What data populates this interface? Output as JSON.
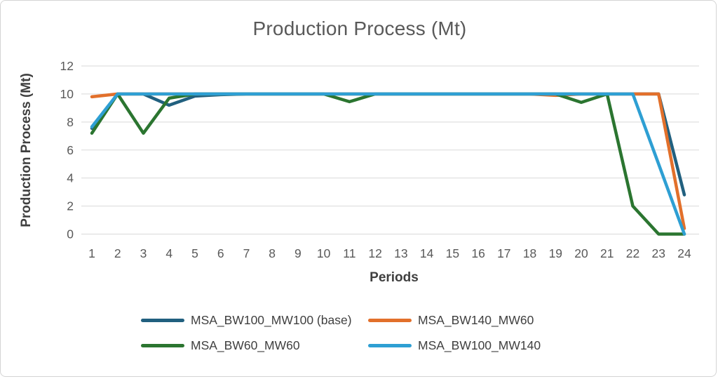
{
  "chart_data": {
    "type": "line",
    "title": "Production Process (Mt)",
    "xlabel": "Periods",
    "ylabel": "Production Process (Mt)",
    "x": [
      1,
      2,
      3,
      4,
      5,
      6,
      7,
      8,
      9,
      10,
      11,
      12,
      13,
      14,
      15,
      16,
      17,
      18,
      19,
      20,
      21,
      22,
      23,
      24
    ],
    "y_ticks": [
      0,
      2,
      4,
      6,
      8,
      10,
      12
    ],
    "ylim": [
      0,
      12
    ],
    "grid": true,
    "legend_position": "bottom",
    "series": [
      {
        "name": "MSA_BW100_MW100 (base)",
        "color": "#21607F",
        "values": [
          7.55,
          10,
          10,
          9.2,
          9.85,
          9.95,
          10,
          10,
          10,
          10,
          10,
          10,
          10,
          10,
          10,
          10,
          10,
          10,
          10,
          10,
          10,
          10,
          10,
          2.8
        ]
      },
      {
        "name": "MSA_BW140_MW60",
        "color": "#E2702B",
        "values": [
          9.8,
          10,
          10,
          10,
          10,
          10,
          10,
          10,
          10,
          10,
          10,
          10,
          10,
          10,
          10,
          10,
          10,
          10,
          9.9,
          10,
          10,
          10,
          10,
          0.4
        ]
      },
      {
        "name": "MSA_BW60_MW60",
        "color": "#2B7530",
        "values": [
          7.2,
          10,
          7.2,
          9.7,
          10,
          10,
          10,
          10,
          10,
          10,
          9.45,
          10,
          10,
          10,
          10,
          10,
          10,
          10,
          10,
          9.4,
          10,
          2,
          0,
          0
        ]
      },
      {
        "name": "MSA_BW100_MW140",
        "color": "#2E9FD3",
        "values": [
          7.65,
          10,
          10,
          10,
          10,
          10,
          10,
          10,
          10,
          10,
          10,
          10,
          10,
          10,
          10,
          10,
          10,
          10,
          10,
          10,
          10,
          10,
          5,
          0
        ]
      }
    ],
    "style": {
      "gridline_color": "#D9D9D9",
      "title_color": "#595959",
      "tick_color": "#595959",
      "axis_title_color": "#3F3F3F",
      "legend_text_color": "#404040",
      "line_width": 4.5
    }
  }
}
